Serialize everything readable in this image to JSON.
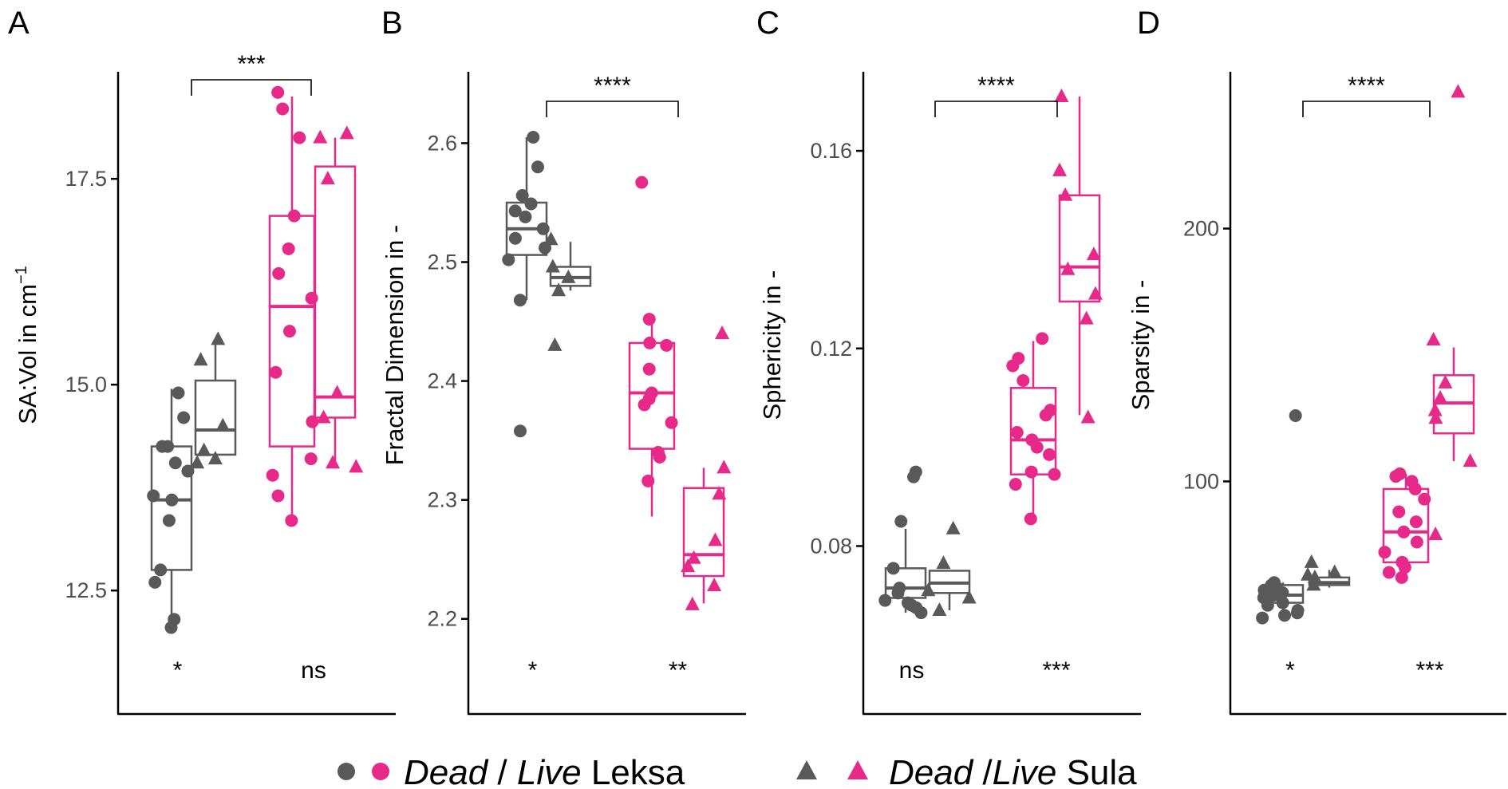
{
  "chart_data": [
    {
      "type": "box",
      "panel": "A",
      "ylabel": "SA:Vol in cm",
      "ylabel_sup": "−1",
      "ylim": [
        11.0,
        18.8
      ],
      "yticks": [
        12.5,
        15.0,
        17.5
      ],
      "ytick_labels": [
        "12.5",
        "15.0",
        "17.5"
      ],
      "comparison": {
        "label": "***",
        "between": "Dead vs Live"
      },
      "group_labels": [
        "*",
        "ns"
      ],
      "boxes": [
        {
          "group": "Dead Leksa",
          "q1": 12.75,
          "median": 13.6,
          "q3": 14.25,
          "whisker_low": 12.05,
          "whisker_high": 14.95
        },
        {
          "group": "Dead Sula",
          "q1": 14.15,
          "median": 14.45,
          "q3": 15.05,
          "whisker_low": 14.05,
          "whisker_high": 15.5
        },
        {
          "group": "Live Leksa",
          "q1": 14.25,
          "median": 15.95,
          "q3": 17.05,
          "whisker_low": 13.4,
          "whisker_high": 18.5
        },
        {
          "group": "Live Sula",
          "q1": 14.6,
          "median": 14.85,
          "q3": 17.65,
          "whisker_low": 14.0,
          "whisker_high": 18.0
        }
      ],
      "points": [
        {
          "group": "Dead Leksa",
          "values": [
            12.05,
            12.15,
            12.6,
            12.75,
            13.35,
            13.6,
            13.65,
            13.95,
            14.05,
            14.25,
            14.25,
            14.6,
            14.9
          ]
        },
        {
          "group": "Dead Sula",
          "values": [
            14.05,
            14.1,
            14.2,
            14.5,
            15.3,
            15.55
          ]
        },
        {
          "group": "Live Leksa",
          "values": [
            13.35,
            13.65,
            13.9,
            14.1,
            14.55,
            15.15,
            15.65,
            16.05,
            16.35,
            16.65,
            17.05,
            18.0,
            18.35,
            18.55
          ]
        },
        {
          "group": "Live Sula",
          "values": [
            14.0,
            14.05,
            14.6,
            14.9,
            17.5,
            18.0,
            18.05
          ]
        }
      ]
    },
    {
      "type": "box",
      "panel": "B",
      "ylabel": "Fractal Dimension in -",
      "ylim": [
        2.12,
        2.66
      ],
      "yticks": [
        2.2,
        2.3,
        2.4,
        2.5,
        2.6
      ],
      "ytick_labels": [
        "2.2",
        "2.3",
        "2.4",
        "2.5",
        "2.6"
      ],
      "comparison": {
        "label": "****",
        "between": "Dead vs Live"
      },
      "group_labels": [
        "*",
        "**"
      ],
      "boxes": [
        {
          "group": "Dead Leksa",
          "q1": 2.506,
          "median": 2.528,
          "q3": 2.55,
          "whisker_low": 2.468,
          "whisker_high": 2.605
        },
        {
          "group": "Dead Sula",
          "q1": 2.48,
          "median": 2.487,
          "q3": 2.496,
          "whisker_low": 2.476,
          "whisker_high": 2.517
        },
        {
          "group": "Live Leksa",
          "q1": 2.343,
          "median": 2.39,
          "q3": 2.432,
          "whisker_low": 2.286,
          "whisker_high": 2.452
        },
        {
          "group": "Live Sula",
          "q1": 2.236,
          "median": 2.254,
          "q3": 2.31,
          "whisker_low": 2.213,
          "whisker_high": 2.327
        }
      ],
      "points": [
        {
          "group": "Dead Leksa",
          "values": [
            2.358,
            2.468,
            2.502,
            2.512,
            2.52,
            2.528,
            2.538,
            2.543,
            2.549,
            2.556,
            2.58,
            2.605
          ]
        },
        {
          "group": "Dead Sula",
          "values": [
            2.43,
            2.476,
            2.487,
            2.496,
            2.519
          ]
        },
        {
          "group": "Live Leksa",
          "values": [
            2.316,
            2.336,
            2.34,
            2.365,
            2.38,
            2.385,
            2.39,
            2.41,
            2.43,
            2.432,
            2.452,
            2.567
          ]
        },
        {
          "group": "Live Sula",
          "values": [
            2.212,
            2.228,
            2.244,
            2.251,
            2.266,
            2.305,
            2.327,
            2.44
          ]
        }
      ]
    },
    {
      "type": "box",
      "panel": "C",
      "ylabel": "Sphericity in -",
      "ylim": [
        0.046,
        0.176
      ],
      "yticks": [
        0.08,
        0.12,
        0.16
      ],
      "ytick_labels": [
        "0.08",
        "0.12",
        "0.16"
      ],
      "comparison": {
        "label": "****",
        "between": "Dead vs Live"
      },
      "group_labels": [
        "ns",
        "***"
      ],
      "boxes": [
        {
          "group": "Dead Leksa",
          "q1": 0.0695,
          "median": 0.0715,
          "q3": 0.0755,
          "whisker_low": 0.0665,
          "whisker_high": 0.0835
        },
        {
          "group": "Dead Sula",
          "q1": 0.0705,
          "median": 0.0725,
          "q3": 0.075,
          "whisker_low": 0.067,
          "whisker_high": 0.075
        },
        {
          "group": "Live Leksa",
          "q1": 0.0945,
          "median": 0.1015,
          "q3": 0.112,
          "whisker_low": 0.0855,
          "whisker_high": 0.1215
        },
        {
          "group": "Live Sula",
          "q1": 0.1295,
          "median": 0.1365,
          "q3": 0.151,
          "whisker_low": 0.1065,
          "whisker_high": 0.171
        }
      ],
      "points": [
        {
          "group": "Dead Leksa",
          "values": [
            0.0665,
            0.0675,
            0.068,
            0.0685,
            0.069,
            0.0705,
            0.0715,
            0.0755,
            0.085,
            0.094,
            0.095
          ]
        },
        {
          "group": "Dead Sula",
          "values": [
            0.067,
            0.0695,
            0.071,
            0.0765,
            0.0835
          ]
        },
        {
          "group": "Live Leksa",
          "values": [
            0.0855,
            0.0925,
            0.0945,
            0.095,
            0.0985,
            0.1,
            0.1015,
            0.103,
            0.1065,
            0.1075,
            0.1135,
            0.1165,
            0.118,
            0.122
          ]
        },
        {
          "group": "Live Sula",
          "values": [
            0.106,
            0.126,
            0.131,
            0.136,
            0.139,
            0.151,
            0.156,
            0.171
          ]
        }
      ]
    },
    {
      "type": "box",
      "panel": "D",
      "ylabel": "Sparsity in -",
      "ylim": [
        8,
        262
      ],
      "yticks": [
        100,
        200
      ],
      "ytick_labels": [
        "100",
        "200"
      ],
      "comparison": {
        "label": "****",
        "between": "Dead vs Live"
      },
      "group_labels": [
        "*",
        "***"
      ],
      "boxes": [
        {
          "group": "Dead Leksa",
          "q1": 52,
          "median": 55,
          "q3": 59,
          "whisker_low": 47,
          "whisker_high": 60
        },
        {
          "group": "Dead Sula",
          "q1": 59,
          "median": 60,
          "q3": 62,
          "whisker_low": 58,
          "whisker_high": 65
        },
        {
          "group": "Live Leksa",
          "q1": 68,
          "median": 80,
          "q3": 97,
          "whisker_low": 63,
          "whisker_high": 103
        },
        {
          "group": "Live Sula",
          "q1": 119,
          "median": 131,
          "q3": 142,
          "whisker_low": 108,
          "whisker_high": 153
        }
      ],
      "points": [
        {
          "group": "Dead Leksa",
          "values": [
            46,
            47,
            48,
            49,
            51,
            52,
            54,
            55,
            56,
            57,
            58,
            59,
            60,
            126
          ]
        },
        {
          "group": "Dead Sula",
          "values": [
            59,
            62,
            63,
            64,
            68
          ]
        },
        {
          "group": "Live Leksa",
          "values": [
            62,
            64,
            66,
            68,
            72,
            76,
            80,
            84,
            88,
            93,
            97,
            100,
            102,
            103
          ]
        },
        {
          "group": "Live Sula",
          "values": [
            79,
            108,
            125,
            128,
            133,
            139,
            156,
            254
          ]
        }
      ]
    }
  ],
  "legend": {
    "leksa_dead_label": "Dead",
    "leksa_sep": " / ",
    "leksa_live_label": "Live",
    "leksa_site": " Leksa",
    "sula_dead_label": "Dead",
    "sula_sep": " /",
    "sula_live_label": "Live",
    "sula_site": " Sula"
  },
  "colors": {
    "dead": "#595959",
    "live": "#e7298a",
    "axis": "#000000"
  }
}
